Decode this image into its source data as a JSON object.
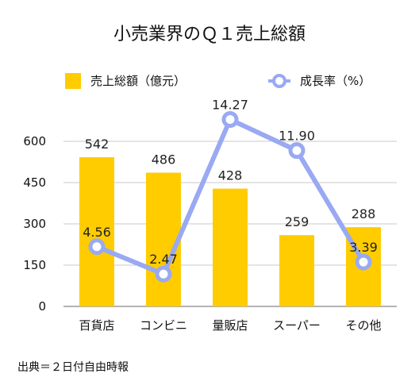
{
  "source_note": "出典＝２日付自由時報",
  "chart_data": {
    "type": "bar",
    "title": "小売業界のＱ１売上総額",
    "categories": [
      "百貨店",
      "コンビニ",
      "量販店",
      "スーパー",
      "その他"
    ],
    "ylim": [
      0,
      600
    ],
    "yticks": [
      "0",
      "150",
      "300",
      "450",
      "600"
    ],
    "grid": true,
    "legend_position": "top",
    "series": [
      {
        "name": "売上総額（億元）",
        "type": "bar",
        "values": [
          542,
          486,
          428,
          259,
          288
        ],
        "labels": [
          "542",
          "486",
          "428",
          "259",
          "288"
        ],
        "color": "#ffcc00"
      },
      {
        "name": "成長率（%）",
        "type": "line",
        "values": [
          4.56,
          2.47,
          14.27,
          11.9,
          3.39
        ],
        "labels": [
          "4.56",
          "2.47",
          "14.27",
          "11.90",
          "3.39"
        ],
        "color": "#99a9f2"
      }
    ]
  }
}
